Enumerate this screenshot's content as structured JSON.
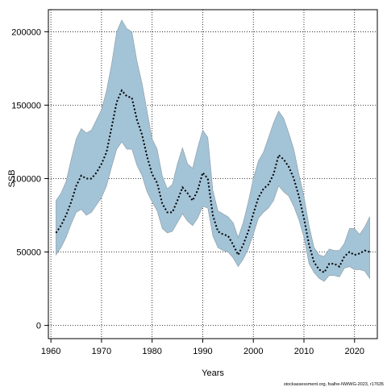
{
  "chart_data": {
    "type": "line",
    "xlabel": "Years",
    "ylabel": "SSB",
    "xlim": [
      1959.5,
      2024.5
    ],
    "ylim": [
      -9000,
      215000
    ],
    "x_ticks": [
      1960,
      1970,
      1980,
      1990,
      2000,
      2010,
      2020
    ],
    "y_ticks": [
      0,
      50000,
      100000,
      150000,
      200000
    ],
    "x_tick_labels": [
      "1960",
      "1970",
      "1980",
      "1990",
      "2000",
      "2010",
      "2020"
    ],
    "y_tick_labels": [
      "0",
      "50000",
      "100000",
      "150000",
      "200000"
    ],
    "grid": true,
    "source": "stockassessment.org, fsalhe-NWWG-2023, r17635",
    "colors": {
      "band": "#a3c3d6",
      "band_edge": "#8a9aa5",
      "line": "#000000",
      "grid": "#000000"
    },
    "x": [
      1961,
      1962,
      1963,
      1964,
      1965,
      1966,
      1967,
      1968,
      1969,
      1970,
      1971,
      1972,
      1973,
      1974,
      1975,
      1976,
      1977,
      1978,
      1979,
      1980,
      1981,
      1982,
      1983,
      1984,
      1985,
      1986,
      1987,
      1988,
      1989,
      1990,
      1991,
      1992,
      1993,
      1994,
      1995,
      1996,
      1997,
      1998,
      1999,
      2000,
      2001,
      2002,
      2003,
      2004,
      2005,
      2006,
      2007,
      2008,
      2009,
      2010,
      2011,
      2012,
      2013,
      2014,
      2015,
      2016,
      2017,
      2018,
      2019,
      2020,
      2021,
      2022,
      2023
    ],
    "series": [
      {
        "name": "estimate",
        "values": [
          63000,
          68000,
          75000,
          84000,
          95000,
          102000,
          100000,
          100000,
          104000,
          110000,
          118000,
          135000,
          152000,
          160000,
          156000,
          155000,
          140000,
          130000,
          115000,
          103000,
          97000,
          83000,
          77000,
          77000,
          85000,
          94000,
          90000,
          85000,
          92000,
          104000,
          100000,
          75000,
          64000,
          62000,
          61000,
          55000,
          48000,
          55000,
          64000,
          76000,
          87000,
          93000,
          96000,
          103000,
          116000,
          113000,
          108000,
          100000,
          88000,
          73000,
          55000,
          43000,
          38000,
          36000,
          42000,
          42000,
          40000,
          47000,
          50000,
          48000,
          49000,
          51000,
          50000
        ]
      },
      {
        "name": "lower",
        "values": [
          48000,
          53000,
          60000,
          69000,
          77000,
          79000,
          75000,
          77000,
          82000,
          87000,
          95000,
          108000,
          120000,
          125000,
          120000,
          120000,
          109000,
          102000,
          91000,
          84000,
          78000,
          66000,
          63000,
          64000,
          70000,
          76000,
          71000,
          68000,
          73000,
          81000,
          80000,
          61000,
          53000,
          51000,
          50000,
          46000,
          40000,
          45000,
          52000,
          62000,
          73000,
          77000,
          80000,
          85000,
          95000,
          91000,
          88000,
          81000,
          72000,
          60000,
          42000,
          36000,
          32000,
          30000,
          34000,
          34000,
          33000,
          39000,
          40000,
          38000,
          38000,
          37000,
          32000
        ]
      },
      {
        "name": "upper",
        "values": [
          85000,
          90000,
          98000,
          113000,
          127000,
          134000,
          131000,
          133000,
          140000,
          147000,
          160000,
          178000,
          200000,
          208000,
          202000,
          200000,
          180000,
          165000,
          146000,
          127000,
          120000,
          102000,
          93000,
          96000,
          110000,
          121000,
          110000,
          107000,
          121000,
          133000,
          128000,
          92000,
          78000,
          76000,
          74000,
          70000,
          60000,
          70000,
          84000,
          100000,
          112000,
          118000,
          128000,
          138000,
          146000,
          141000,
          131000,
          120000,
          103000,
          88000,
          68000,
          53000,
          48000,
          47000,
          52000,
          51000,
          51000,
          56000,
          66000,
          66000,
          62000,
          67000,
          74000
        ]
      }
    ]
  }
}
